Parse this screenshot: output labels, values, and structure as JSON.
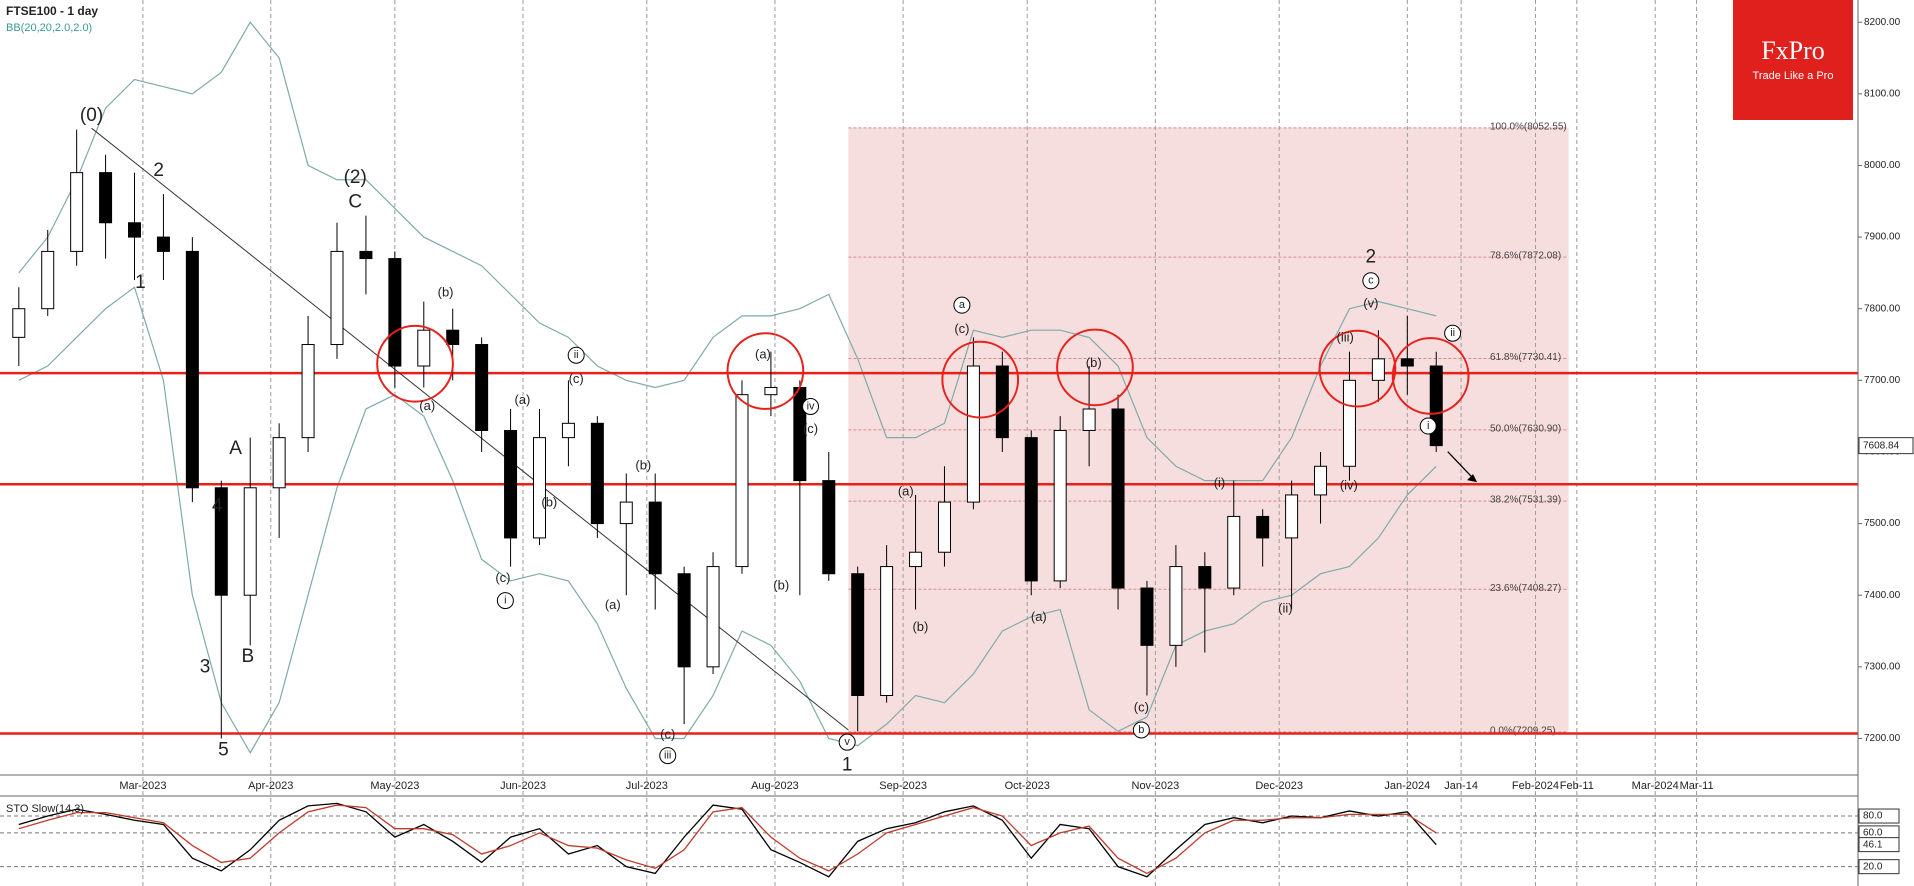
{
  "chart_data": {
    "type": "candlestick",
    "title": "FTSE100 - 1 day",
    "indicator": "BB(20,20,2.0,2.0)",
    "x": [
      -1,
      0,
      1,
      2,
      3,
      4,
      5,
      6,
      7,
      8,
      9,
      10,
      11,
      12,
      13,
      14,
      15,
      16,
      17,
      18,
      19,
      20,
      21,
      22,
      23,
      24,
      25,
      26,
      27,
      28,
      29,
      30,
      31,
      32,
      33,
      34,
      35,
      36,
      37,
      38,
      39,
      40,
      41,
      42,
      43,
      44,
      45,
      46,
      47,
      48
    ],
    "open": [
      7760,
      7800,
      7880,
      7990,
      7920,
      7900,
      7880,
      7550,
      7400,
      7550,
      7620,
      7750,
      7880,
      7870,
      7720,
      7770,
      7750,
      7630,
      7480,
      7620,
      7640,
      7500,
      7530,
      7430,
      7300,
      7440,
      7680,
      7690,
      7560,
      7430,
      7260,
      7440,
      7460,
      7530,
      7720,
      7620,
      7420,
      7630,
      7660,
      7410,
      7330,
      7440,
      7410,
      7510,
      7480,
      7540,
      7580,
      7700,
      7730,
      7720
    ],
    "high": [
      7830,
      7910,
      8050,
      8015,
      7990,
      7960,
      7900,
      7560,
      7620,
      7640,
      7790,
      7920,
      7930,
      7880,
      7810,
      7800,
      7760,
      7660,
      7660,
      7700,
      7650,
      7570,
      7570,
      7440,
      7460,
      7700,
      7740,
      7700,
      7600,
      7440,
      7470,
      7540,
      7580,
      7760,
      7740,
      7630,
      7650,
      7720,
      7680,
      7420,
      7470,
      7460,
      7560,
      7520,
      7560,
      7600,
      7740,
      7770,
      7790,
      7740
    ],
    "low": [
      7720,
      7790,
      7860,
      7870,
      7840,
      7840,
      7530,
      7200,
      7330,
      7480,
      7600,
      7730,
      7820,
      7690,
      7690,
      7700,
      7600,
      7440,
      7470,
      7580,
      7480,
      7400,
      7380,
      7220,
      7290,
      7430,
      7650,
      7400,
      7420,
      7210,
      7250,
      7380,
      7440,
      7520,
      7600,
      7400,
      7410,
      7580,
      7380,
      7260,
      7300,
      7320,
      7400,
      7440,
      7380,
      7500,
      7560,
      7670,
      7680,
      7600
    ],
    "close": [
      7800,
      7880,
      7990,
      7920,
      7900,
      7880,
      7550,
      7400,
      7550,
      7620,
      7750,
      7880,
      7870,
      7720,
      7770,
      7750,
      7630,
      7480,
      7620,
      7640,
      7500,
      7530,
      7430,
      7300,
      7440,
      7680,
      7690,
      7560,
      7430,
      7260,
      7440,
      7460,
      7530,
      7720,
      7620,
      7420,
      7630,
      7660,
      7410,
      7330,
      7440,
      7410,
      7510,
      7480,
      7540,
      7580,
      7700,
      7730,
      7720,
      7608.84
    ],
    "bands": [
      {
        "color": "#7faaaa",
        "values": [
          7850,
          7900,
          7980,
          8080,
          8120,
          8110,
          8100,
          8130,
          8200,
          8150,
          8000,
          7980,
          7980,
          7940,
          7900,
          7880,
          7860,
          7820,
          7780,
          7760,
          7720,
          7700,
          7690,
          7700,
          7760,
          7790,
          7790,
          7800,
          7820,
          7730,
          7620,
          7620,
          7640,
          7770,
          7760,
          7770,
          7770,
          7760,
          7720,
          7620,
          7580,
          7560,
          7560,
          7560,
          7620,
          7720,
          7800,
          7810,
          7800,
          7790
        ]
      },
      {
        "color": "#7faaaa",
        "values": [
          7700,
          7720,
          7760,
          7800,
          7830,
          7700,
          7400,
          7250,
          7180,
          7250,
          7400,
          7550,
          7660,
          7680,
          7650,
          7560,
          7450,
          7420,
          7430,
          7420,
          7360,
          7270,
          7200,
          7200,
          7260,
          7350,
          7330,
          7280,
          7200,
          7190,
          7220,
          7260,
          7250,
          7290,
          7350,
          7370,
          7380,
          7240,
          7210,
          7230,
          7330,
          7350,
          7360,
          7390,
          7400,
          7430,
          7440,
          7480,
          7540,
          7580
        ]
      }
    ],
    "xlim": [
      -1.65,
      62.58
    ],
    "ylim": [
      7149,
      8231
    ],
    "xticks": [
      {
        "value": 3.29,
        "label": "Mar-2023"
      },
      {
        "value": 7.71,
        "label": "Apr-2023"
      },
      {
        "value": 12,
        "label": "May-2023"
      },
      {
        "value": 16.43,
        "label": "Jun-2023"
      },
      {
        "value": 20.71,
        "label": "Jul-2023"
      },
      {
        "value": 25.14,
        "label": "Aug-2023"
      },
      {
        "value": 29.57,
        "label": "Sep-2023"
      },
      {
        "value": 33.86,
        "label": "Oct-2023"
      },
      {
        "value": 38.29,
        "label": "Nov-2023"
      },
      {
        "value": 42.57,
        "label": "Dec-2023"
      },
      {
        "value": 47,
        "label": "Jan-2024"
      },
      {
        "value": 48.86,
        "label": "Jan-14"
      },
      {
        "value": 51.43,
        "label": "Feb-2024"
      },
      {
        "value": 52.86,
        "label": "Feb-11"
      },
      {
        "value": 55.57,
        "label": "Mar-2024"
      },
      {
        "value": 57,
        "label": "Mar-11"
      }
    ],
    "yticks": [
      {
        "value": 7200,
        "label": "7200.00"
      },
      {
        "value": 7300,
        "label": "7300.00"
      },
      {
        "value": 7400,
        "label": "7400.00"
      },
      {
        "value": 7500,
        "label": "7500.00"
      },
      {
        "value": 7600,
        "label": "7600.00"
      },
      {
        "value": 7700,
        "label": "7700.00"
      },
      {
        "value": 7800,
        "label": "7800.00"
      },
      {
        "value": 7900,
        "label": "7900.00"
      },
      {
        "value": 8000,
        "label": "8000.00"
      },
      {
        "value": 8100,
        "label": "8100.00"
      },
      {
        "value": 8200,
        "label": "8200.00"
      }
    ],
    "last_price": {
      "value": 7608.84,
      "label": "7608.84"
    },
    "levels": [
      7710,
      7555,
      7207
    ],
    "level_color": "#e8201a",
    "fibonacci": [
      {
        "value": 8052.55,
        "label": "100.0%(8052.55)"
      },
      {
        "value": 7872.08,
        "label": "78.6%(7872.08)"
      },
      {
        "value": 7730.41,
        "label": "61.8%(7730.41)"
      },
      {
        "value": 7630.9,
        "label": "50.0%(7630.90)"
      },
      {
        "value": 7531.39,
        "label": "38.2%(7531.39)"
      },
      {
        "value": 7408.27,
        "label": "23.6%(7408.27)"
      },
      {
        "value": 7209.25,
        "label": "0.0%(7209.25)"
      }
    ],
    "annotations": [
      {
        "text": "(0)"
      },
      {
        "text": "2"
      },
      {
        "text": "1"
      },
      {
        "text": "(2)"
      },
      {
        "text": "C"
      },
      {
        "text": "A"
      },
      {
        "text": "4"
      },
      {
        "text": "3"
      },
      {
        "text": "B"
      },
      {
        "text": "5"
      },
      {
        "text": "(b)"
      },
      {
        "text": "(a)"
      },
      {
        "text": "ii",
        "circled": true
      },
      {
        "text": "(c)"
      },
      {
        "text": "(a)"
      },
      {
        "text": "(c)"
      },
      {
        "text": "i",
        "circled": true
      },
      {
        "text": "(b)"
      },
      {
        "text": "(b)"
      },
      {
        "text": "(a)"
      },
      {
        "text": "(c)"
      },
      {
        "text": "iii",
        "circled": true
      },
      {
        "text": "(a)"
      },
      {
        "text": "iv",
        "circled": true
      },
      {
        "text": "(c)"
      },
      {
        "text": "(b)"
      },
      {
        "text": "v",
        "circled": true
      },
      {
        "text": "1"
      },
      {
        "text": "a",
        "circled": true
      },
      {
        "text": "(c)"
      },
      {
        "text": "(a)"
      },
      {
        "text": "(b)"
      },
      {
        "text": "(a)"
      },
      {
        "text": "(b)"
      },
      {
        "text": "(c)"
      },
      {
        "text": "b",
        "circled": true
      },
      {
        "text": "(i)"
      },
      {
        "text": "(ii)"
      },
      {
        "text": "2"
      },
      {
        "text": "c",
        "circled": true
      },
      {
        "text": "(v)"
      },
      {
        "text": "(iii)"
      },
      {
        "text": "(iv)"
      },
      {
        "text": "ii",
        "circled": true
      },
      {
        "text": "i",
        "circled": true
      }
    ],
    "stoch": {
      "title": "STO Slow(14,3)",
      "ylim": [
        3,
        99
      ],
      "yticks": [
        {
          "value": 80,
          "label": "80.0"
        },
        {
          "value": 60,
          "label": "60.0"
        },
        {
          "value": 20,
          "label": "20.0"
        }
      ],
      "last": {
        "value": 46.1,
        "label": "46.1"
      },
      "series": [
        {
          "color": "#000000",
          "values": [
            70,
            80,
            88,
            82,
            75,
            70,
            30,
            15,
            40,
            75,
            92,
            95,
            85,
            55,
            70,
            50,
            25,
            55,
            65,
            35,
            45,
            20,
            12,
            55,
            93,
            88,
            40,
            25,
            8,
            50,
            65,
            72,
            85,
            92,
            75,
            30,
            70,
            65,
            20,
            8,
            40,
            70,
            78,
            72,
            80,
            78,
            86,
            80,
            85,
            46.1
          ]
        },
        {
          "color": "#c0392b",
          "values": [
            65,
            75,
            84,
            84,
            78,
            72,
            45,
            25,
            30,
            60,
            85,
            93,
            90,
            65,
            65,
            58,
            35,
            45,
            60,
            45,
            42,
            28,
            18,
            40,
            85,
            90,
            55,
            30,
            15,
            35,
            60,
            70,
            80,
            90,
            80,
            45,
            60,
            68,
            30,
            12,
            30,
            60,
            75,
            75,
            78,
            78,
            82,
            82,
            82,
            60
          ]
        }
      ]
    }
  },
  "logo": {
    "name": "FxPro",
    "tagline": "Trade Like a Pro"
  }
}
